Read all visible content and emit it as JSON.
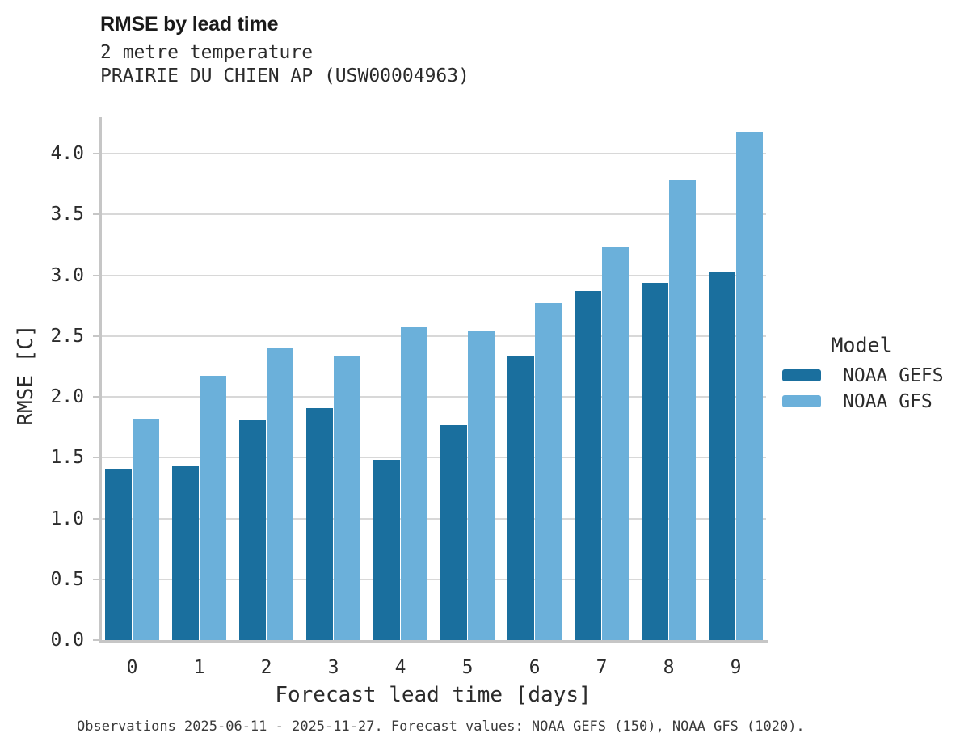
{
  "header": {
    "title": "RMSE by lead time",
    "subtitle1": "2 metre temperature",
    "subtitle2": "PRAIRIE DU CHIEN AP (USW00004963)"
  },
  "caption": "Observations 2025-06-11 - 2025-11-27. Forecast values: NOAA GEFS (150), NOAA GFS (1020).",
  "legend": {
    "title": "Model",
    "items": [
      {
        "label": "NOAA GEFS",
        "color": "#1a6f9e"
      },
      {
        "label": "NOAA GFS",
        "color": "#6bb0da"
      }
    ]
  },
  "chart_data": {
    "type": "bar",
    "title": "RMSE by lead time",
    "subtitle": [
      "2 metre temperature",
      "PRAIRIE DU CHIEN AP (USW00004963)"
    ],
    "xlabel": "Forecast lead time [days]",
    "ylabel": "RMSE [C]",
    "categories": [
      "0",
      "1",
      "2",
      "3",
      "4",
      "5",
      "6",
      "7",
      "8",
      "9"
    ],
    "series": [
      {
        "name": "NOAA GEFS",
        "color": "#1a6f9e",
        "values": [
          1.41,
          1.43,
          1.81,
          1.91,
          1.48,
          1.77,
          2.34,
          2.87,
          2.94,
          3.03
        ]
      },
      {
        "name": "NOAA GFS",
        "color": "#6bb0da",
        "values": [
          1.82,
          2.17,
          2.4,
          2.34,
          2.58,
          2.54,
          2.77,
          3.23,
          3.78,
          4.18
        ]
      }
    ],
    "ylim": [
      0.0,
      4.3
    ],
    "yticks": [
      "0.0",
      "0.5",
      "1.0",
      "1.5",
      "2.0",
      "2.5",
      "3.0",
      "3.5",
      "4.0"
    ],
    "grid": true,
    "legend_title": "Model",
    "legend_position": "right"
  }
}
